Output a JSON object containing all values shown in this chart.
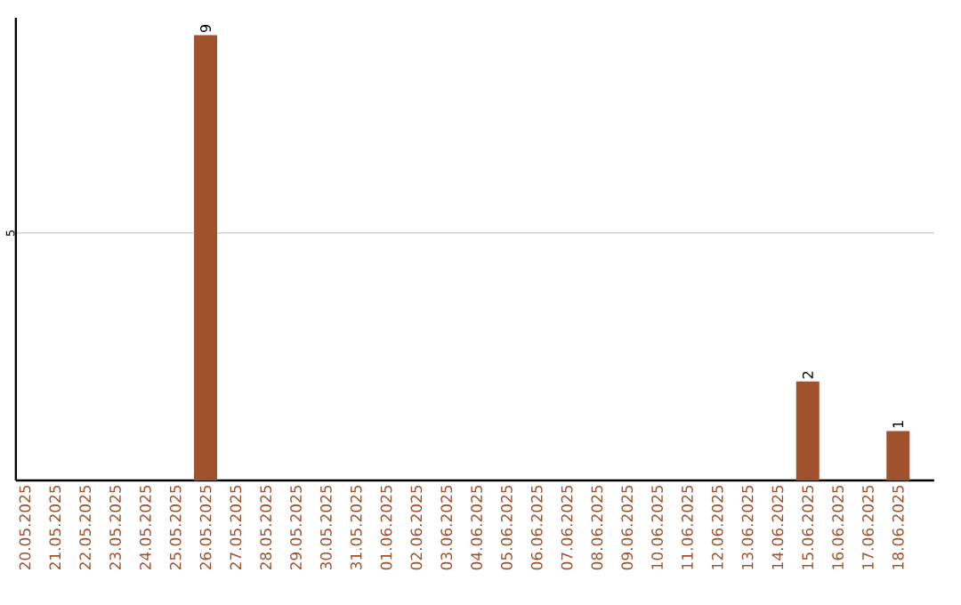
{
  "chart_data": {
    "type": "bar",
    "categories": [
      "20.05.2025",
      "21.05.2025",
      "22.05.2025",
      "23.05.2025",
      "24.05.2025",
      "25.05.2025",
      "26.05.2025",
      "27.05.2025",
      "28.05.2025",
      "29.05.2025",
      "30.05.2025",
      "31.05.2025",
      "01.06.2025",
      "02.06.2025",
      "03.06.2025",
      "04.06.2025",
      "05.06.2025",
      "06.06.2025",
      "07.06.2025",
      "08.06.2025",
      "09.06.2025",
      "10.06.2025",
      "11.06.2025",
      "12.06.2025",
      "13.06.2025",
      "14.06.2025",
      "15.06.2025",
      "16.06.2025",
      "17.06.2025",
      "18.06.2025"
    ],
    "values": [
      0,
      0,
      0,
      0,
      0,
      0,
      9,
      0,
      0,
      0,
      0,
      0,
      0,
      0,
      0,
      0,
      0,
      0,
      0,
      0,
      0,
      0,
      0,
      0,
      0,
      0,
      2,
      0,
      0,
      1
    ],
    "value_labels": [
      null,
      null,
      null,
      null,
      null,
      null,
      "9",
      null,
      null,
      null,
      null,
      null,
      null,
      null,
      null,
      null,
      null,
      null,
      null,
      null,
      null,
      null,
      null,
      null,
      null,
      null,
      "2",
      null,
      null,
      "1"
    ],
    "color": "#a0522d",
    "ylim": [
      0,
      9.35
    ],
    "yticks": [
      5
    ],
    "grid": "y"
  }
}
